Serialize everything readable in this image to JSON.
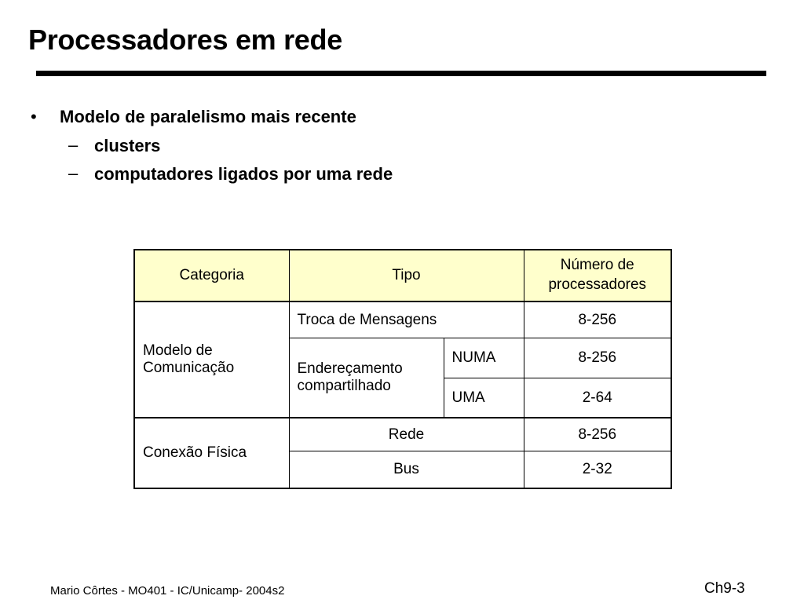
{
  "slide": {
    "title": "Processadores em rede"
  },
  "bullets": {
    "main": {
      "marker": "•",
      "text": "Modelo de paralelismo mais recente"
    },
    "sub": [
      {
        "marker": "–",
        "text": "clusters"
      },
      {
        "marker": "–",
        "text": "computadores ligados por uma rede"
      }
    ]
  },
  "table": {
    "headers": {
      "categoria": "Categoria",
      "tipo": "Tipo",
      "numero_line1": "Número de",
      "numero_line2": "processadores"
    },
    "comunicacao": {
      "category_line1": "Modelo de",
      "category_line2": "Comunicação",
      "troca": {
        "tipo": "Troca de Mensagens",
        "numero": "8-256"
      },
      "enderecamento": {
        "tipo_line1": "Endereçamento",
        "tipo_line2": "compartilhado",
        "numa": {
          "subtipo": "NUMA",
          "numero": "8-256"
        },
        "uma": {
          "subtipo": "UMA",
          "numero": "2-64"
        }
      }
    },
    "fisica": {
      "category": "Conexão Física",
      "rede": {
        "tipo": "Rede",
        "numero": "8-256"
      },
      "bus": {
        "tipo": "Bus",
        "numero": "2-32"
      }
    }
  },
  "footer": {
    "left": "Mario Côrtes - MO401 - IC/Unicamp- 2004s2",
    "right": "Ch9-3"
  }
}
